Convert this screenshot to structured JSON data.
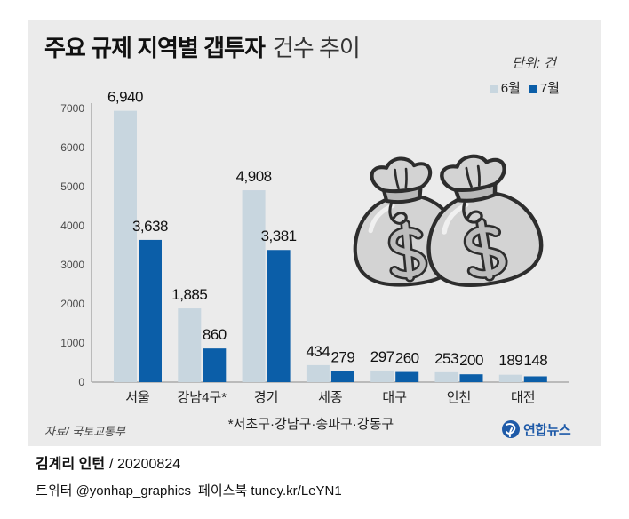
{
  "chart_data": {
    "type": "bar",
    "title": {
      "bold": "주요 규제 지역별 갭투자",
      "light": "건수 추이"
    },
    "unit": "단위: 건",
    "categories": [
      "서울",
      "강남4구*",
      "경기",
      "세종",
      "대구",
      "인천",
      "대전"
    ],
    "series": [
      {
        "name": "6월",
        "color": "#c8d6df",
        "values": [
          6940,
          1885,
          4908,
          434,
          297,
          253,
          189
        ]
      },
      {
        "name": "7월",
        "color": "#0b5ea8",
        "values": [
          3638,
          860,
          3381,
          279,
          260,
          200,
          148
        ]
      }
    ],
    "ylim": [
      0,
      7000
    ],
    "yticks": [
      0,
      1000,
      2000,
      3000,
      4000,
      5000,
      6000,
      7000
    ],
    "show_data_labels": true,
    "grid": false,
    "legend_position": "top-right",
    "footnote": "*서초구·강남구·송파구·강동구",
    "source": "자료/ 국토교통부"
  },
  "illustration": {
    "icon": "money-bags-icon"
  },
  "logo": {
    "icon": "yonhap-logo-icon",
    "text": "연합뉴스",
    "color": "#1e5aa8"
  },
  "credit": {
    "author": "김계리 인턴",
    "rest": "/ 20200824"
  },
  "social": {
    "twitter": "트위터 @yonhap_graphics",
    "facebook": "페이스북 tuney.kr/LeYN1"
  },
  "colors": {
    "panel": "#ebebeb",
    "bag_fill": "#d3d3d3",
    "bag_outline": "#2d2d2d"
  }
}
